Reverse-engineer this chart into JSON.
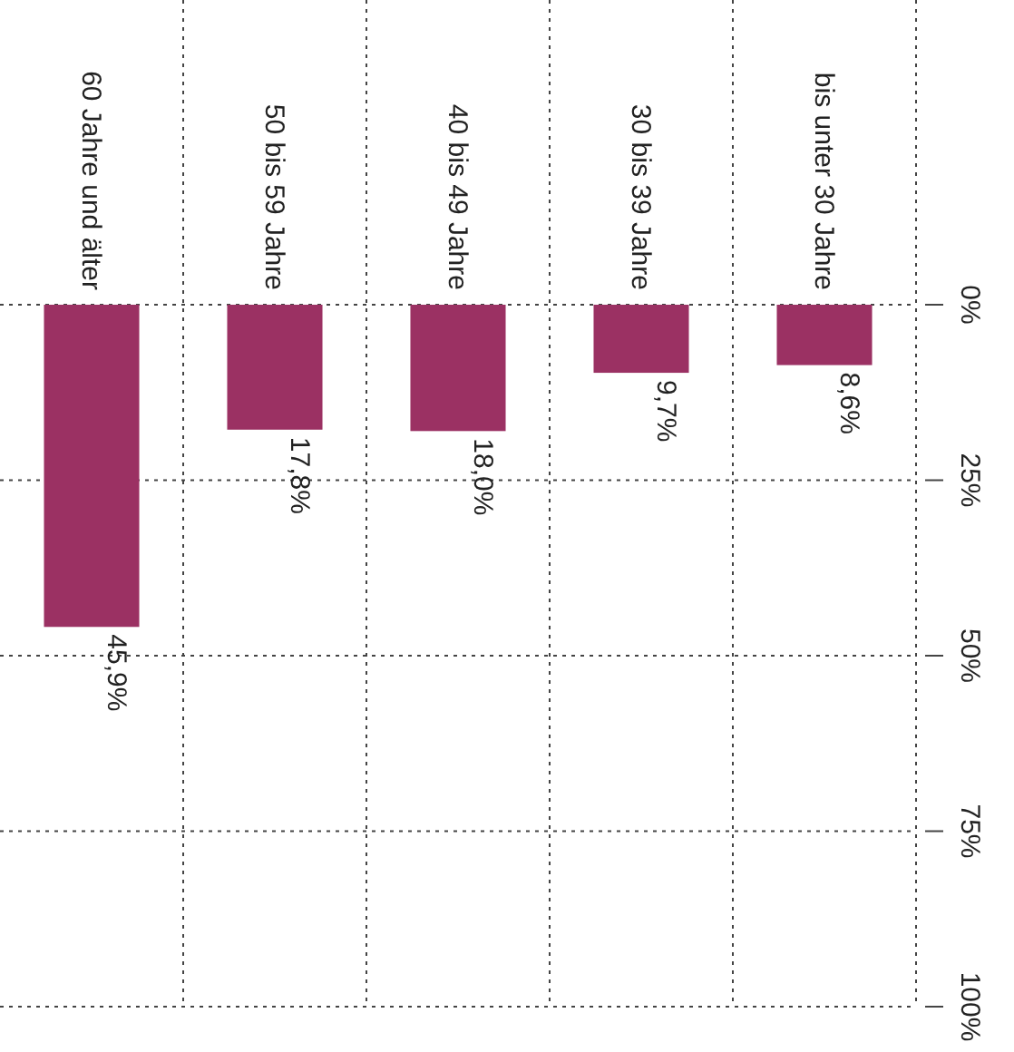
{
  "chart_data": {
    "type": "bar",
    "categories": [
      "60 Jahre und älter",
      "50 bis 59 Jahre",
      "40 bis 49 Jahre",
      "30 bis 39 Jahre",
      "bis unter 30 Jahre"
    ],
    "values": [
      45.9,
      17.8,
      18.0,
      9.7,
      8.6
    ],
    "value_labels": [
      "45,9%",
      "17,8%",
      "18,0%",
      "9,7%",
      "8,6%"
    ],
    "color": "#9b3163",
    "ylim": [
      100,
      0
    ],
    "yticks": [
      {
        "value": 0,
        "label": "0%"
      },
      {
        "value": 25,
        "label": "25%"
      },
      {
        "value": 50,
        "label": "50%"
      },
      {
        "value": 75,
        "label": "75%"
      },
      {
        "value": 100,
        "label": "100%"
      }
    ],
    "grid": true
  }
}
